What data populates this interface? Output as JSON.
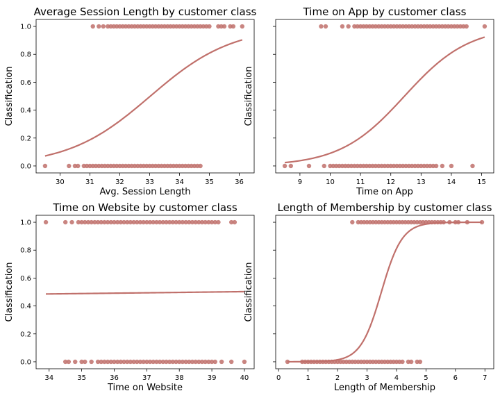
{
  "colors": {
    "marker": "#c0706b",
    "curve": "#c0706b",
    "axes": "#000000"
  },
  "chart_data": [
    {
      "type": "scatter",
      "title": "Average Session Length by customer class",
      "xlabel": "Avg. Session Length",
      "ylabel": "Classification",
      "xlim": [
        29.2,
        36.5
      ],
      "ylim": [
        -0.05,
        1.05
      ],
      "xticks": [
        30,
        31,
        32,
        33,
        34,
        35,
        36
      ],
      "yticks": [
        "0.0",
        "0.2",
        "0.4",
        "0.6",
        "0.8",
        "1.0"
      ],
      "points_class_1": [
        31.1,
        31.3,
        31.45,
        31.6,
        31.7,
        31.8,
        31.9,
        32.0,
        32.1,
        32.2,
        32.3,
        32.4,
        32.5,
        32.6,
        32.7,
        32.8,
        32.9,
        33.0,
        33.1,
        33.2,
        33.3,
        33.4,
        33.5,
        33.6,
        33.7,
        33.8,
        33.9,
        34.0,
        34.1,
        34.2,
        34.3,
        34.4,
        34.5,
        34.6,
        34.7,
        34.8,
        34.9,
        35.0,
        35.3,
        35.4,
        35.5,
        35.7,
        35.8,
        36.1
      ],
      "points_class_0": [
        29.5,
        30.3,
        30.5,
        30.6,
        30.8,
        30.9,
        31.0,
        31.1,
        31.2,
        31.3,
        31.4,
        31.5,
        31.6,
        31.7,
        31.8,
        31.9,
        32.0,
        32.1,
        32.2,
        32.3,
        32.4,
        32.5,
        32.6,
        32.7,
        32.8,
        32.9,
        33.0,
        33.1,
        33.2,
        33.3,
        33.4,
        33.5,
        33.6,
        33.7,
        33.8,
        33.9,
        34.0,
        34.1,
        34.2,
        34.3,
        34.4,
        34.5,
        34.6,
        34.7
      ],
      "logistic_fit": {
        "intercept": -24.0,
        "slope": 0.7268
      }
    },
    {
      "type": "scatter",
      "title": "Time on App  by customer class",
      "xlabel": "Time on App",
      "ylabel": "Classification",
      "xlim": [
        8.2,
        15.4
      ],
      "ylim": [
        -0.05,
        1.05
      ],
      "xticks": [
        9,
        10,
        11,
        12,
        13,
        14,
        15
      ],
      "yticks": [
        "0.0",
        "0.2",
        "0.4",
        "0.6",
        "0.8",
        "1.0"
      ],
      "points_class_1": [
        9.7,
        9.85,
        10.4,
        10.6,
        10.8,
        10.9,
        11.0,
        11.1,
        11.2,
        11.3,
        11.4,
        11.5,
        11.6,
        11.7,
        11.8,
        11.9,
        12.0,
        12.1,
        12.2,
        12.3,
        12.4,
        12.5,
        12.6,
        12.7,
        12.8,
        12.9,
        13.0,
        13.1,
        13.2,
        13.3,
        13.4,
        13.5,
        13.6,
        13.7,
        13.8,
        13.9,
        14.0,
        14.1,
        14.2,
        14.3,
        14.4,
        14.5,
        15.1
      ],
      "points_class_0": [
        8.5,
        8.7,
        9.3,
        9.8,
        10.0,
        10.1,
        10.2,
        10.3,
        10.4,
        10.5,
        10.6,
        10.7,
        10.8,
        10.9,
        11.0,
        11.1,
        11.2,
        11.3,
        11.4,
        11.5,
        11.6,
        11.7,
        11.8,
        11.9,
        12.0,
        12.1,
        12.2,
        12.3,
        12.4,
        12.5,
        12.6,
        12.7,
        12.8,
        12.9,
        13.0,
        13.1,
        13.2,
        13.3,
        13.4,
        13.5,
        13.7,
        14.0,
        14.7
      ],
      "logistic_fit": {
        "intercept": -11.69,
        "slope": 0.9389
      }
    },
    {
      "type": "scatter",
      "title": "Time on Website by customer class",
      "xlabel": "Time on Website",
      "ylabel": "Classification",
      "xlim": [
        33.6,
        40.3
      ],
      "ylim": [
        -0.05,
        1.05
      ],
      "xticks": [
        34,
        35,
        36,
        37,
        38,
        39,
        40
      ],
      "yticks": [
        "0.0",
        "0.2",
        "0.4",
        "0.6",
        "0.8",
        "1.0"
      ],
      "points_class_1": [
        33.9,
        34.5,
        34.7,
        34.9,
        35.0,
        35.1,
        35.2,
        35.3,
        35.4,
        35.5,
        35.6,
        35.7,
        35.8,
        35.9,
        36.0,
        36.1,
        36.2,
        36.3,
        36.4,
        36.5,
        36.6,
        36.7,
        36.8,
        36.9,
        37.0,
        37.1,
        37.2,
        37.3,
        37.4,
        37.5,
        37.6,
        37.7,
        37.8,
        37.9,
        38.0,
        38.1,
        38.2,
        38.3,
        38.4,
        38.5,
        38.6,
        38.7,
        38.8,
        38.9,
        39.0,
        39.1,
        39.2,
        39.6,
        39.7
      ],
      "points_class_0": [
        34.5,
        34.6,
        34.8,
        35.0,
        35.1,
        35.3,
        35.5,
        35.6,
        35.7,
        35.8,
        35.9,
        36.0,
        36.1,
        36.2,
        36.3,
        36.4,
        36.5,
        36.6,
        36.7,
        36.8,
        36.9,
        37.0,
        37.1,
        37.2,
        37.3,
        37.4,
        37.5,
        37.6,
        37.7,
        37.8,
        37.9,
        38.0,
        38.1,
        38.2,
        38.3,
        38.4,
        38.5,
        38.6,
        38.7,
        38.8,
        38.9,
        39.0,
        39.1,
        39.3,
        39.6,
        40.0
      ],
      "logistic_fit": {
        "intercept": -0.433,
        "slope": 0.0111
      }
    },
    {
      "type": "scatter",
      "title": "Length of Membership by customer class",
      "xlabel": "Length of Membership",
      "ylabel": "Classification",
      "xlim": [
        -0.1,
        7.3
      ],
      "ylim": [
        -0.05,
        1.05
      ],
      "xticks": [
        0,
        1,
        2,
        3,
        4,
        5,
        6,
        7
      ],
      "yticks": [
        "0.0",
        "0.2",
        "0.4",
        "0.6",
        "0.8",
        "1.0"
      ],
      "points_class_1": [
        2.5,
        2.7,
        2.8,
        2.9,
        3.0,
        3.1,
        3.2,
        3.3,
        3.4,
        3.5,
        3.6,
        3.7,
        3.8,
        3.9,
        4.0,
        4.1,
        4.2,
        4.3,
        4.4,
        4.5,
        4.6,
        4.7,
        4.8,
        4.9,
        5.0,
        5.1,
        5.2,
        5.3,
        5.4,
        5.5,
        5.6,
        5.8,
        6.0,
        6.1,
        6.4,
        6.9
      ],
      "points_class_0": [
        0.3,
        0.8,
        0.9,
        1.0,
        1.1,
        1.2,
        1.3,
        1.4,
        1.5,
        1.6,
        1.7,
        1.8,
        1.9,
        2.0,
        2.1,
        2.2,
        2.3,
        2.4,
        2.5,
        2.6,
        2.7,
        2.8,
        2.9,
        3.0,
        3.1,
        3.2,
        3.3,
        3.4,
        3.5,
        3.6,
        3.7,
        3.8,
        3.9,
        4.0,
        4.1,
        4.2,
        4.4,
        4.5,
        4.7,
        4.8
      ],
      "logistic_fit": {
        "intercept": -9.91,
        "slope": 2.8426
      }
    }
  ]
}
